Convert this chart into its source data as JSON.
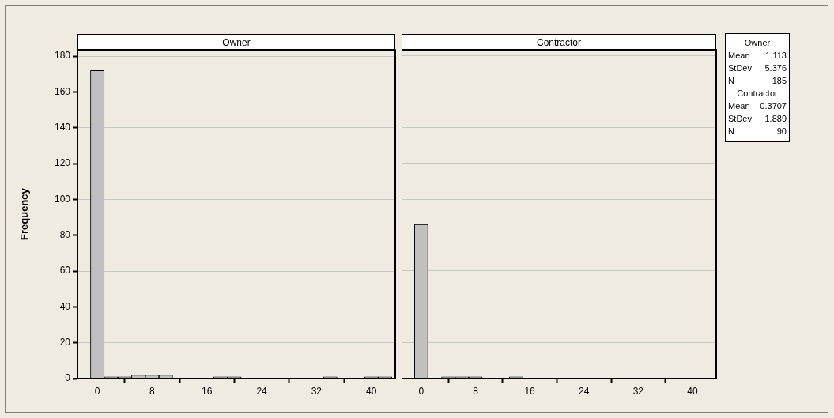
{
  "chart_data": [
    {
      "type": "histogram",
      "title": "Owner",
      "ylabel": "Frequency",
      "bins": [
        -1,
        1,
        3,
        5,
        7,
        9,
        11,
        13,
        15,
        17,
        19,
        21,
        23,
        25,
        27,
        29,
        31,
        33,
        35,
        37,
        39,
        41,
        43
      ],
      "values": [
        172,
        1,
        1,
        2,
        2,
        2,
        0,
        0,
        0,
        1,
        1,
        0,
        0,
        0,
        0,
        0,
        0,
        1,
        0,
        0,
        1,
        1
      ],
      "color": "#c0c0c0",
      "xlim": [
        -2.9,
        43.5
      ],
      "xticks": [
        0,
        8,
        16,
        24,
        32,
        40
      ],
      "ylim": [
        0,
        183.5
      ],
      "yticks": [
        0,
        20,
        40,
        60,
        80,
        100,
        120,
        140,
        160,
        180
      ],
      "grid": "y"
    },
    {
      "type": "histogram",
      "title": "Contractor",
      "bins": [
        -1,
        1,
        3,
        5,
        7,
        9,
        11,
        13,
        15,
        17,
        19,
        21,
        23,
        25,
        27,
        29,
        31,
        33,
        35,
        37,
        39,
        41,
        43
      ],
      "values": [
        86,
        0,
        1,
        1,
        1,
        0,
        0,
        1,
        0,
        0,
        0,
        0,
        0,
        0,
        0,
        0,
        0,
        0,
        0,
        0,
        0,
        0
      ],
      "color": "#c0c0c0",
      "xlim": [
        -2.9,
        43.5
      ],
      "xticks": [
        0,
        8,
        16,
        24,
        32,
        40
      ],
      "ylim": [
        0,
        183.5
      ],
      "yticks": [
        0,
        20,
        40,
        60,
        80,
        100,
        120,
        140,
        160,
        180
      ],
      "grid": "y",
      "tick_labels": "x"
    },
    {
      "type": "other",
      "annotations": [
        "Owner",
        "Mean 1.113",
        "StDev 5.376",
        "N 185",
        "Contractor",
        "Mean 0.3707",
        "StDev 1.889",
        "N 90"
      ]
    }
  ]
}
